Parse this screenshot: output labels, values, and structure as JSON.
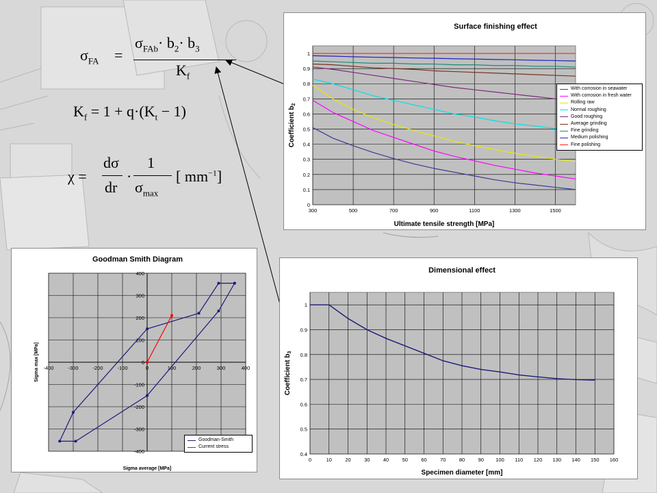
{
  "formulas": {
    "f1_lhs": "σ",
    "f1_lhs_sub": "FA",
    "f1_eq": "=",
    "f1_num": "σ",
    "f1_num_sub": "FAb",
    "f1_num_rest": "· b",
    "f1_num_b2sub": "2",
    "f1_num_rest2": "· b",
    "f1_num_b3sub": "3",
    "f1_den": "K",
    "f1_den_sub": "f",
    "f2_lhs": "K",
    "f2_lhs_sub": "f",
    "f2_rhs": "= 1 + q·(K",
    "f2_rhs_sub": "t",
    "f2_rhs_end": " − 1)",
    "f3_lhs": "χ =",
    "f3_num": "dσ",
    "f3_den": "dr",
    "f3_dot": "·",
    "f3_num2": "1",
    "f3_den2": "σ",
    "f3_den2_sub": "max",
    "f3_unit": "[ mm",
    "f3_unit_sup": "−1",
    "f3_unit_end": "]"
  },
  "chart_data": [
    {
      "type": "line",
      "title": "Surface finishing effect",
      "xlabel": "Ultimate tensile strength [MPa]",
      "ylabel": "Coefficient b",
      "ylabel_sub": "2",
      "xlim": [
        300,
        1600
      ],
      "ylim": [
        0,
        1.05
      ],
      "xticks": [
        "300",
        "500",
        "700",
        "900",
        "1100",
        "1300",
        "1500"
      ],
      "yticks": [
        "0",
        "0.1",
        "0.2",
        "0.3",
        "0.4",
        "0.5",
        "0.6",
        "0.7",
        "0.8",
        "0.9",
        "1"
      ],
      "plot_bg": "#c0c0c0",
      "grid": true,
      "legend_position": "right",
      "x": [
        300,
        400,
        500,
        600,
        700,
        800,
        900,
        1000,
        1100,
        1200,
        1300,
        1400,
        1500,
        1600
      ],
      "series": [
        {
          "name": "With corrosion in seawater",
          "color": "#3a3a9a",
          "values": [
            0.51,
            0.44,
            0.39,
            0.345,
            0.305,
            0.27,
            0.24,
            0.215,
            0.19,
            0.165,
            0.145,
            0.13,
            0.115,
            0.1
          ]
        },
        {
          "name": "With corrosion in fresh water",
          "color": "#ff00ff",
          "values": [
            0.69,
            0.61,
            0.55,
            0.49,
            0.445,
            0.4,
            0.355,
            0.32,
            0.29,
            0.26,
            0.235,
            0.21,
            0.19,
            0.17
          ]
        },
        {
          "name": "Rolling raw",
          "color": "#e8e800",
          "values": [
            0.79,
            0.7,
            0.63,
            0.575,
            0.53,
            0.49,
            0.455,
            0.42,
            0.39,
            0.365,
            0.34,
            0.32,
            0.3,
            0.285
          ]
        },
        {
          "name": "Normal roughing",
          "color": "#00e0e8",
          "values": [
            0.83,
            0.8,
            0.76,
            0.72,
            0.69,
            0.66,
            0.63,
            0.6,
            0.58,
            0.555,
            0.535,
            0.52,
            0.505,
            0.495
          ]
        },
        {
          "name": "Good roughing",
          "color": "#7a2a7a",
          "values": [
            0.91,
            0.895,
            0.875,
            0.855,
            0.835,
            0.815,
            0.795,
            0.775,
            0.76,
            0.745,
            0.73,
            0.715,
            0.7,
            0.69
          ]
        },
        {
          "name": "Average grinding",
          "color": "#7a3020",
          "values": [
            0.93,
            0.925,
            0.915,
            0.905,
            0.9,
            0.895,
            0.885,
            0.88,
            0.875,
            0.87,
            0.865,
            0.86,
            0.855,
            0.85
          ]
        },
        {
          "name": "Fine grinding",
          "color": "#1a8a7a",
          "values": [
            0.95,
            0.945,
            0.94,
            0.935,
            0.935,
            0.93,
            0.93,
            0.925,
            0.925,
            0.92,
            0.92,
            0.915,
            0.915,
            0.91
          ]
        },
        {
          "name": "Medium polishing",
          "color": "#2020c0",
          "values": [
            0.985,
            0.982,
            0.978,
            0.975,
            0.973,
            0.97,
            0.968,
            0.965,
            0.963,
            0.96,
            0.958,
            0.955,
            0.953,
            0.95
          ]
        },
        {
          "name": "Fine polishing",
          "color": "#ff2020",
          "values": [
            1.0,
            1.0,
            1.0,
            1.0,
            1.0,
            1.0,
            1.0,
            1.0,
            1.0,
            1.0,
            1.0,
            1.0,
            1.0,
            1.0
          ]
        }
      ]
    },
    {
      "type": "line",
      "title": "Goodman Smith Diagram",
      "xlabel": "Sigma average [MPa]",
      "ylabel": "Sigma max [MPa]",
      "xlim": [
        -400,
        400
      ],
      "ylim": [
        -400,
        400
      ],
      "xticks": [
        "-400",
        "-300",
        "-200",
        "-100",
        "0",
        "100",
        "200",
        "300",
        "400"
      ],
      "yticks": [
        "-400",
        "-300",
        "-200",
        "-100",
        "0",
        "100",
        "200",
        "300",
        "400"
      ],
      "plot_bg": "#c0c0c0",
      "grid": true,
      "legend_position": "bottom-right",
      "series": [
        {
          "name": "Goodman-Smith",
          "color": "#1a1a7a",
          "points": [
            [
              355,
              355
            ],
            [
              290,
              355
            ],
            [
              210,
              220
            ],
            [
              0,
              150
            ],
            [
              -300,
              -225
            ],
            [
              -355,
              -355
            ],
            [
              -290,
              -355
            ],
            [
              0,
              -150
            ],
            [
              290,
              230
            ],
            [
              355,
              355
            ]
          ]
        },
        {
          "name": "Current stress",
          "color": "#ff0000",
          "points": [
            [
              0,
              0
            ],
            [
              100,
              210
            ]
          ]
        }
      ]
    },
    {
      "type": "line",
      "title": "Dimensional effect",
      "xlabel": "Specimen diameter [mm]",
      "ylabel": "Coefficient b",
      "ylabel_sub": "3",
      "xlim": [
        0,
        160
      ],
      "ylim": [
        0.4,
        1.05
      ],
      "xticks": [
        "0",
        "10",
        "20",
        "30",
        "40",
        "50",
        "60",
        "70",
        "80",
        "90",
        "100",
        "110",
        "120",
        "130",
        "140",
        "150",
        "160"
      ],
      "yticks": [
        "0.4",
        "0.5",
        "0.6",
        "0.7",
        "0.8",
        "0.9",
        "1"
      ],
      "plot_bg": "#c0c0c0",
      "grid": true,
      "series": [
        {
          "name": "",
          "color": "#1a1a7a",
          "points": [
            [
              0,
              1.0
            ],
            [
              10,
              1.0
            ],
            [
              20,
              0.945
            ],
            [
              30,
              0.9
            ],
            [
              40,
              0.865
            ],
            [
              50,
              0.835
            ],
            [
              60,
              0.805
            ],
            [
              70,
              0.775
            ],
            [
              80,
              0.755
            ],
            [
              90,
              0.74
            ],
            [
              100,
              0.73
            ],
            [
              110,
              0.718
            ],
            [
              120,
              0.71
            ],
            [
              130,
              0.703
            ],
            [
              140,
              0.699
            ],
            [
              150,
              0.697
            ]
          ]
        }
      ]
    }
  ]
}
